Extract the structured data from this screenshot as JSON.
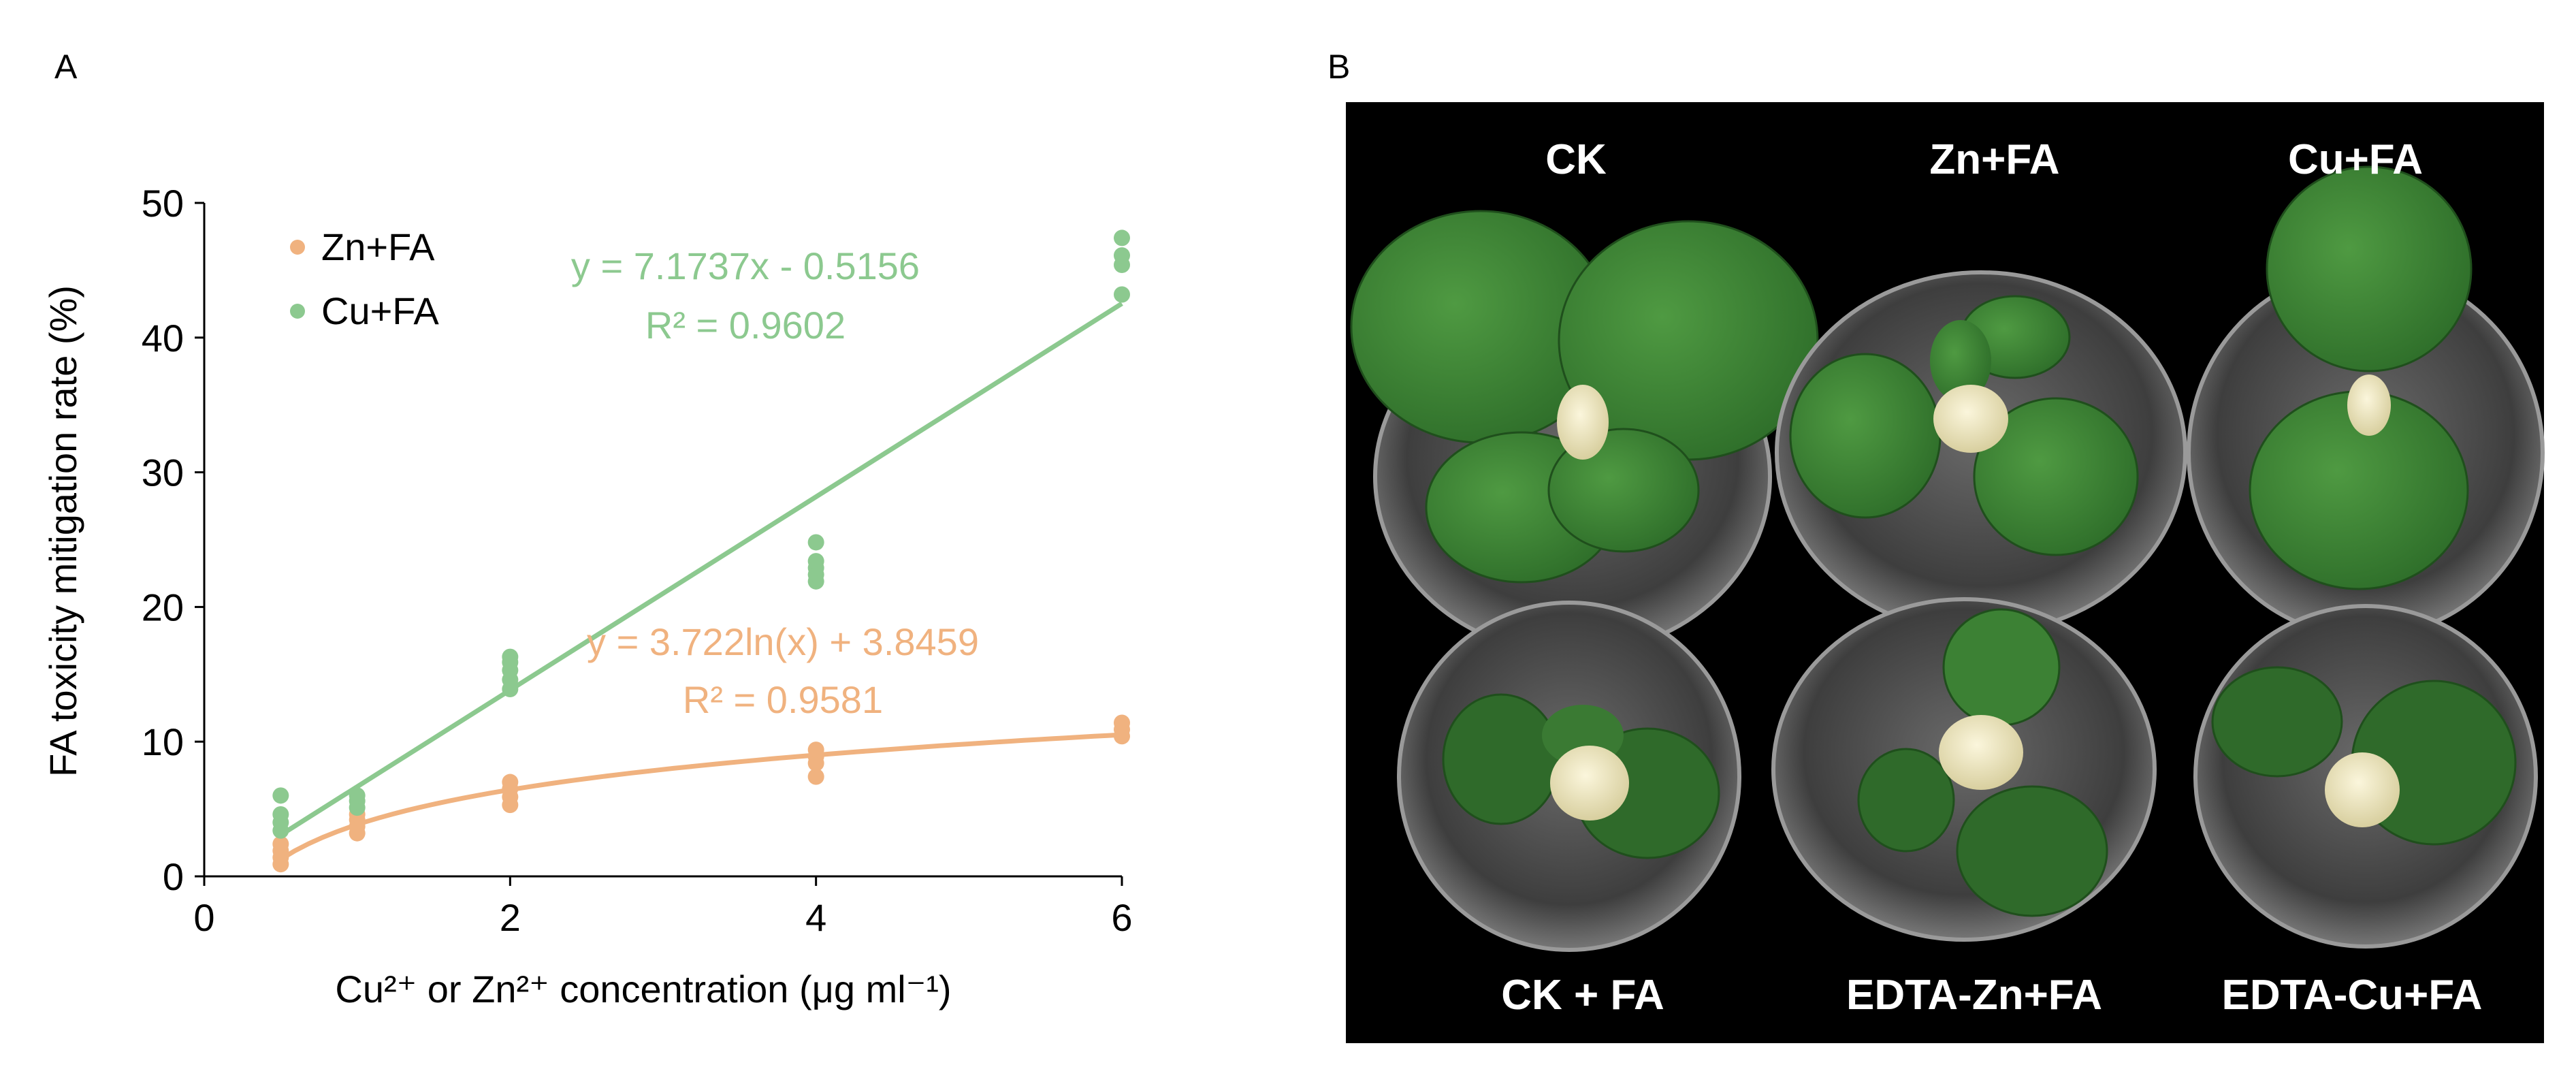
{
  "panels": {
    "a_label": "A",
    "b_label": "B"
  },
  "colors": {
    "zn": "#F0B27F",
    "cu": "#8CC98F",
    "axis": "#000000",
    "photo_bg": "#000000",
    "label": "#ffffff"
  },
  "chart_data": {
    "type": "scatter",
    "xlabel": "Cu²⁺ or Zn²⁺ concentration (μg ml⁻¹)",
    "ylabel": "FA toxicity mitigation rate (%)",
    "xlim": [
      0,
      6
    ],
    "ylim": [
      0,
      50
    ],
    "xticks": [
      0,
      2,
      4,
      6
    ],
    "yticks": [
      0,
      10,
      20,
      30,
      40,
      50
    ],
    "grid": false,
    "legend_position": "top-left",
    "series": [
      {
        "name": "Zn+FA",
        "color": "#F0B27F",
        "points": [
          [
            0.5,
            0.9
          ],
          [
            0.5,
            1.4
          ],
          [
            0.5,
            1.9
          ],
          [
            0.5,
            2.4
          ],
          [
            1,
            3.2
          ],
          [
            1,
            3.7
          ],
          [
            1,
            4.2
          ],
          [
            1,
            4.6
          ],
          [
            2,
            5.3
          ],
          [
            2,
            5.9
          ],
          [
            2,
            6.5
          ],
          [
            2,
            7.0
          ],
          [
            4,
            7.4
          ],
          [
            4,
            8.4
          ],
          [
            4,
            8.9
          ],
          [
            4,
            9.4
          ],
          [
            6,
            10.4
          ],
          [
            6,
            10.9
          ],
          [
            6,
            11.4
          ]
        ],
        "trendline": {
          "type": "log",
          "a": 3.722,
          "b": 3.8459
        },
        "equation": "y = 3.722ln(x) + 3.8459",
        "r2": "R² = 0.9581"
      },
      {
        "name": "Cu+FA",
        "color": "#8CC98F",
        "points": [
          [
            0.5,
            3.4
          ],
          [
            0.5,
            4.0
          ],
          [
            0.5,
            4.6
          ],
          [
            0.5,
            6.0
          ],
          [
            1,
            5.1
          ],
          [
            1,
            5.6
          ],
          [
            1,
            6.0
          ],
          [
            2,
            13.9
          ],
          [
            2,
            14.6
          ],
          [
            2,
            15.3
          ],
          [
            2,
            15.9
          ],
          [
            2,
            16.3
          ],
          [
            4,
            21.9
          ],
          [
            4,
            22.4
          ],
          [
            4,
            22.9
          ],
          [
            4,
            23.4
          ],
          [
            4,
            24.8
          ],
          [
            6,
            43.2
          ],
          [
            6,
            45.4
          ],
          [
            6,
            46.1
          ],
          [
            6,
            47.4
          ]
        ],
        "trendline": {
          "type": "linear",
          "slope": 7.1737,
          "intercept": -0.5156,
          "x_range": [
            0.5,
            6
          ]
        },
        "equation": "y = 7.1737x - 0.5156",
        "r2": "R² = 0.9602"
      }
    ]
  },
  "photo": {
    "labels": [
      "CK",
      "Zn+FA",
      "Cu+FA",
      "CK + FA",
      "EDTA-Zn+FA",
      "EDTA-Cu+FA"
    ],
    "leaf_state": [
      "healthy",
      "moderate",
      "healthy",
      "wilted",
      "wilted",
      "wilted"
    ]
  }
}
